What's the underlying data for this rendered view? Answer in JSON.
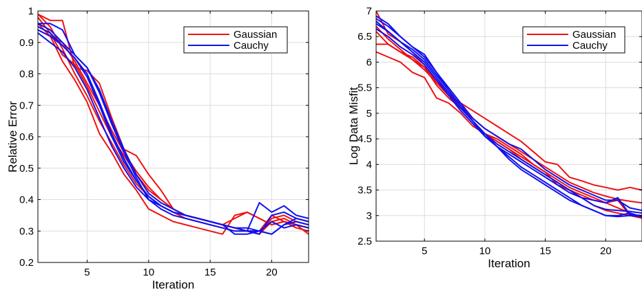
{
  "chart_data": [
    {
      "type": "line",
      "xlabel": "Iteration",
      "ylabel": "Relative Error",
      "xlim": [
        1,
        23
      ],
      "ylim": [
        0.2,
        1
      ],
      "xticks": [
        5,
        10,
        15,
        20
      ],
      "yticks": [
        0.2,
        0.3,
        0.4,
        0.5,
        0.6,
        0.7,
        0.8,
        0.9,
        1
      ],
      "ytick_labels": [
        "0.2",
        "0.3",
        "0.4",
        "0.5",
        "0.6",
        "0.7",
        "0.8",
        "0.9",
        "1"
      ],
      "grid": true,
      "legend_position": "top-right",
      "legend": [
        {
          "label": "Gaussian",
          "color": "#ee1111"
        },
        {
          "label": "Cauchy",
          "color": "#1111ee"
        }
      ],
      "x": [
        1,
        2,
        3,
        4,
        5,
        6,
        7,
        8,
        9,
        10,
        11,
        12,
        13,
        14,
        15,
        16,
        17,
        18,
        19,
        20,
        21,
        22,
        23
      ],
      "series": [
        {
          "group": "Gaussian",
          "color": "#ee1111",
          "values": [
            0.99,
            0.97,
            0.97,
            0.82,
            0.81,
            0.77,
            0.66,
            0.56,
            0.54,
            0.48,
            0.43,
            0.37,
            0.35,
            0.34,
            0.33,
            0.32,
            0.31,
            0.3,
            0.29,
            0.34,
            0.35,
            0.33,
            0.32
          ]
        },
        {
          "group": "Gaussian",
          "color": "#ee1111",
          "values": [
            0.98,
            0.93,
            0.86,
            0.83,
            0.76,
            0.68,
            0.6,
            0.54,
            0.48,
            0.43,
            0.4,
            0.37,
            0.35,
            0.34,
            0.33,
            0.32,
            0.34,
            0.36,
            0.34,
            0.32,
            0.33,
            0.32,
            0.31
          ]
        },
        {
          "group": "Gaussian",
          "color": "#ee1111",
          "values": [
            0.96,
            0.92,
            0.84,
            0.78,
            0.71,
            0.61,
            0.55,
            0.48,
            0.43,
            0.37,
            0.35,
            0.33,
            0.32,
            0.31,
            0.3,
            0.29,
            0.35,
            0.36,
            0.34,
            0.32,
            0.33,
            0.32,
            0.29
          ]
        },
        {
          "group": "Gaussian",
          "color": "#ee1111",
          "values": [
            0.99,
            0.95,
            0.88,
            0.8,
            0.73,
            0.65,
            0.58,
            0.51,
            0.45,
            0.41,
            0.38,
            0.36,
            0.34,
            0.33,
            0.32,
            0.31,
            0.3,
            0.3,
            0.29,
            0.33,
            0.34,
            0.32,
            0.31
          ]
        },
        {
          "group": "Gaussian",
          "color": "#ee1111",
          "values": [
            0.94,
            0.92,
            0.9,
            0.84,
            0.77,
            0.7,
            0.62,
            0.55,
            0.49,
            0.44,
            0.4,
            0.37,
            0.35,
            0.34,
            0.33,
            0.32,
            0.31,
            0.3,
            0.3,
            0.35,
            0.33,
            0.31,
            0.3
          ]
        },
        {
          "group": "Cauchy",
          "color": "#1111ee",
          "values": [
            0.96,
            0.96,
            0.94,
            0.86,
            0.82,
            0.74,
            0.64,
            0.55,
            0.47,
            0.4,
            0.38,
            0.36,
            0.35,
            0.34,
            0.33,
            0.32,
            0.31,
            0.3,
            0.39,
            0.36,
            0.38,
            0.35,
            0.34
          ]
        },
        {
          "group": "Cauchy",
          "color": "#1111ee",
          "values": [
            0.95,
            0.93,
            0.89,
            0.85,
            0.8,
            0.71,
            0.61,
            0.53,
            0.46,
            0.41,
            0.38,
            0.36,
            0.35,
            0.34,
            0.33,
            0.32,
            0.31,
            0.31,
            0.3,
            0.29,
            0.32,
            0.34,
            0.33
          ]
        },
        {
          "group": "Cauchy",
          "color": "#1111ee",
          "values": [
            0.93,
            0.9,
            0.87,
            0.82,
            0.75,
            0.66,
            0.57,
            0.5,
            0.44,
            0.4,
            0.37,
            0.35,
            0.34,
            0.33,
            0.32,
            0.31,
            0.3,
            0.3,
            0.29,
            0.35,
            0.36,
            0.34,
            0.33
          ]
        },
        {
          "group": "Cauchy",
          "color": "#1111ee",
          "values": [
            0.96,
            0.94,
            0.9,
            0.86,
            0.82,
            0.75,
            0.65,
            0.56,
            0.48,
            0.42,
            0.39,
            0.37,
            0.35,
            0.34,
            0.33,
            0.32,
            0.31,
            0.3,
            0.3,
            0.33,
            0.31,
            0.32,
            0.31
          ]
        },
        {
          "group": "Cauchy",
          "color": "#1111ee",
          "values": [
            0.94,
            0.92,
            0.89,
            0.85,
            0.79,
            0.7,
            0.6,
            0.52,
            0.46,
            0.41,
            0.38,
            0.36,
            0.35,
            0.34,
            0.33,
            0.32,
            0.29,
            0.29,
            0.3,
            0.29,
            0.32,
            0.33,
            0.32
          ]
        }
      ]
    },
    {
      "type": "line",
      "xlabel": "Iteration",
      "ylabel": "Log Data Misfit",
      "xlim": [
        1,
        23
      ],
      "ylim": [
        2.5,
        7
      ],
      "xticks": [
        5,
        10,
        15,
        20
      ],
      "yticks": [
        2.5,
        3,
        3.5,
        4,
        4.5,
        5,
        5.5,
        6,
        6.5,
        7
      ],
      "ytick_labels": [
        "2.5",
        "3",
        "3.5",
        "4",
        "4.5",
        "5",
        "5.5",
        "6",
        "6.5",
        "7"
      ],
      "grid": true,
      "legend_position": "top-right",
      "legend": [
        {
          "label": "Gaussian",
          "color": "#ee1111"
        },
        {
          "label": "Cauchy",
          "color": "#1111ee"
        }
      ],
      "x": [
        1,
        2,
        3,
        4,
        5,
        6,
        7,
        8,
        9,
        10,
        11,
        12,
        13,
        14,
        15,
        16,
        17,
        18,
        19,
        20,
        21,
        22,
        23
      ],
      "series": [
        {
          "group": "Gaussian",
          "color": "#ee1111",
          "values": [
            7.0,
            6.55,
            6.4,
            6.2,
            5.95,
            5.6,
            5.35,
            5.2,
            5.05,
            4.9,
            4.75,
            4.6,
            4.45,
            4.25,
            4.05,
            4.0,
            3.75,
            3.68,
            3.6,
            3.55,
            3.5,
            3.55,
            3.5
          ]
        },
        {
          "group": "Gaussian",
          "color": "#ee1111",
          "values": [
            6.35,
            6.35,
            6.2,
            6.1,
            5.9,
            5.65,
            5.4,
            5.15,
            4.9,
            4.7,
            4.55,
            4.4,
            4.25,
            4.1,
            3.95,
            3.8,
            3.65,
            3.55,
            3.45,
            3.38,
            3.32,
            3.28,
            3.25
          ]
        },
        {
          "group": "Gaussian",
          "color": "#ee1111",
          "values": [
            6.2,
            6.1,
            6.0,
            5.8,
            5.7,
            5.3,
            5.2,
            5.0,
            4.75,
            4.6,
            4.5,
            4.35,
            4.2,
            4.0,
            3.85,
            3.6,
            3.5,
            3.4,
            3.3,
            3.25,
            3.3,
            3.0,
            2.95
          ]
        },
        {
          "group": "Gaussian",
          "color": "#ee1111",
          "values": [
            6.6,
            6.35,
            6.2,
            6.05,
            5.85,
            5.6,
            5.35,
            5.1,
            4.85,
            4.6,
            4.45,
            4.3,
            4.15,
            4.0,
            3.85,
            3.7,
            3.55,
            3.45,
            3.35,
            3.25,
            3.15,
            3.05,
            2.95
          ]
        },
        {
          "group": "Gaussian",
          "color": "#ee1111",
          "values": [
            6.7,
            6.45,
            6.25,
            6.05,
            5.9,
            5.55,
            5.3,
            5.1,
            4.85,
            4.6,
            4.45,
            4.3,
            4.1,
            3.95,
            3.8,
            3.65,
            3.5,
            3.35,
            3.2,
            3.1,
            3.05,
            3.0,
            2.98
          ]
        },
        {
          "group": "Cauchy",
          "color": "#1111ee",
          "values": [
            6.9,
            6.75,
            6.5,
            6.3,
            6.15,
            5.8,
            5.5,
            5.2,
            4.9,
            4.7,
            4.55,
            4.4,
            4.3,
            4.1,
            3.9,
            3.75,
            3.6,
            3.5,
            3.4,
            3.3,
            3.3,
            3.15,
            3.1
          ]
        },
        {
          "group": "Cauchy",
          "color": "#1111ee",
          "values": [
            6.75,
            6.6,
            6.4,
            6.25,
            6.05,
            5.75,
            5.45,
            5.15,
            4.85,
            4.6,
            4.35,
            4.1,
            3.9,
            3.75,
            3.6,
            3.45,
            3.3,
            3.2,
            3.1,
            3.0,
            3.0,
            3.05,
            2.98
          ]
        },
        {
          "group": "Cauchy",
          "color": "#1111ee",
          "values": [
            6.65,
            6.5,
            6.3,
            6.15,
            5.95,
            5.65,
            5.35,
            5.05,
            4.8,
            4.55,
            4.35,
            4.15,
            3.95,
            3.8,
            3.65,
            3.5,
            3.35,
            3.2,
            3.1,
            3.0,
            2.98,
            3.0,
            2.98
          ]
        },
        {
          "group": "Cauchy",
          "color": "#1111ee",
          "values": [
            6.8,
            6.6,
            6.4,
            6.2,
            6.0,
            5.7,
            5.4,
            5.1,
            4.85,
            4.6,
            4.4,
            4.25,
            4.1,
            3.95,
            3.8,
            3.65,
            3.5,
            3.35,
            3.2,
            3.12,
            3.1,
            3.08,
            3.05
          ]
        },
        {
          "group": "Cauchy",
          "color": "#1111ee",
          "values": [
            6.85,
            6.7,
            6.5,
            6.3,
            6.1,
            5.8,
            5.45,
            5.15,
            4.85,
            4.55,
            4.35,
            4.2,
            4.05,
            3.9,
            3.75,
            3.6,
            3.45,
            3.35,
            3.3,
            3.25,
            3.35,
            3.02,
            3.0
          ]
        }
      ]
    }
  ]
}
